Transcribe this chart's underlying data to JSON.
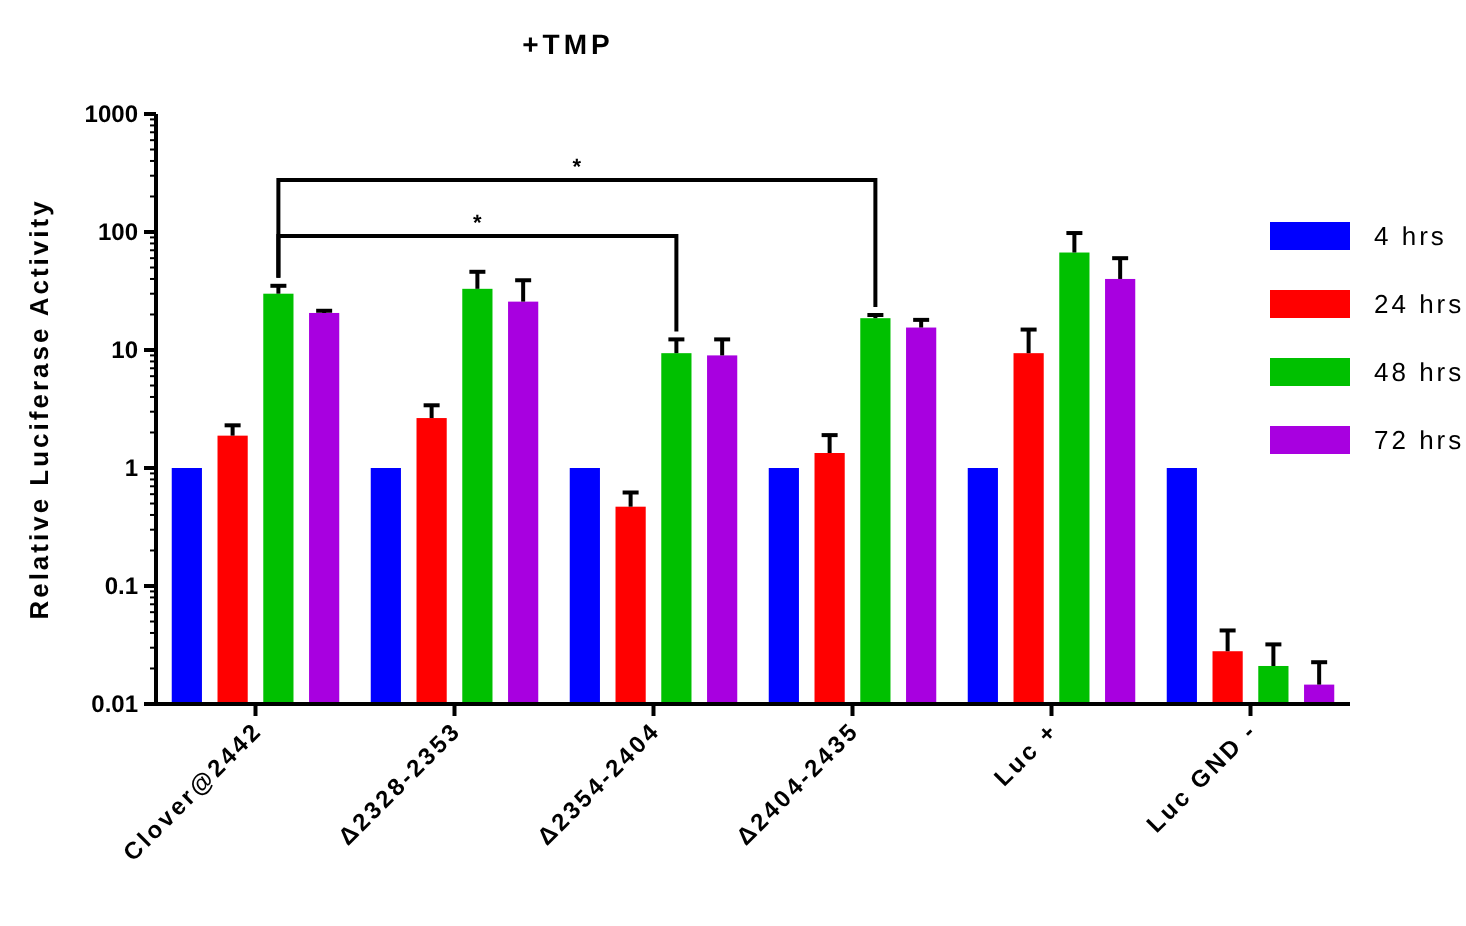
{
  "chart_data": {
    "type": "bar",
    "title": "+TMP",
    "ylabel": "Relative Luciferase Activity",
    "categories": [
      "Clover@2442",
      "Δ2328-2353",
      "Δ2354-2404",
      "Δ2404-2435",
      "Luc +",
      "Luc GND -"
    ],
    "series": [
      {
        "name": "4 hrs",
        "color": "#0000ff",
        "values": [
          1,
          1,
          1,
          1,
          1,
          1
        ],
        "errors": [
          null,
          null,
          null,
          null,
          null,
          null
        ]
      },
      {
        "name": "24 hrs",
        "color": "#ff0000",
        "values": [
          1.88,
          2.65,
          0.47,
          1.34,
          9.4,
          0.028
        ],
        "errors": [
          [
            1.88,
            2.3
          ],
          [
            2.65,
            3.4
          ],
          [
            0.47,
            0.62
          ],
          [
            1.34,
            1.9
          ],
          [
            9.4,
            14.9
          ],
          [
            0.028,
            0.042
          ]
        ]
      },
      {
        "name": "48 hrs",
        "color": "#00c000",
        "values": [
          30,
          33,
          9.4,
          18.6,
          67,
          0.021
        ],
        "errors": [
          [
            30,
            35
          ],
          [
            33,
            46
          ],
          [
            9.4,
            12.3
          ],
          [
            18.6,
            19.8
          ],
          [
            67,
            98
          ],
          [
            0.021,
            0.032
          ]
        ]
      },
      {
        "name": "72 hrs",
        "color": "#a800e0",
        "values": [
          20.6,
          25.7,
          9,
          15.5,
          40,
          0.0146
        ],
        "errors": [
          [
            20.6,
            21.5
          ],
          [
            25.7,
            39
          ],
          [
            9,
            12.3
          ],
          [
            15.5,
            18
          ],
          [
            40,
            60
          ],
          [
            0.0146,
            0.0226
          ]
        ]
      }
    ],
    "log": true,
    "ylim": [
      0.01,
      1000
    ],
    "yticks": [
      0.01,
      {
        "value": 0.02,
        "label": null
      },
      {
        "value": 0.03,
        "label": null
      },
      {
        "value": 0.04,
        "label": null
      },
      {
        "value": 0.05,
        "label": null
      },
      {
        "value": 0.06,
        "label": null
      },
      {
        "value": 0.07,
        "label": null
      },
      {
        "value": 0.08,
        "label": null
      },
      {
        "value": 0.09,
        "label": null
      },
      0.1,
      {
        "value": 0.2,
        "label": null
      },
      {
        "value": 0.3,
        "label": null
      },
      {
        "value": 0.4,
        "label": null
      },
      {
        "value": 0.5,
        "label": null
      },
      {
        "value": 0.6,
        "label": null
      },
      {
        "value": 0.7,
        "label": null
      },
      {
        "value": 0.8,
        "label": null
      },
      {
        "value": 0.9,
        "label": null
      },
      1,
      {
        "value": 2,
        "label": null
      },
      {
        "value": 3,
        "label": null
      },
      {
        "value": 4,
        "label": null
      },
      {
        "value": 5,
        "label": null
      },
      {
        "value": 6,
        "label": null
      },
      {
        "value": 7,
        "label": null
      },
      {
        "value": 8,
        "label": null
      },
      {
        "value": 9,
        "label": null
      },
      10,
      {
        "value": 20,
        "label": null
      },
      {
        "value": 30,
        "label": null
      },
      {
        "value": 40,
        "label": null
      },
      {
        "value": 50,
        "label": null
      },
      {
        "value": 60,
        "label": null
      },
      {
        "value": 70,
        "label": null
      },
      {
        "value": 80,
        "label": null
      },
      {
        "value": 90,
        "label": null
      },
      100,
      {
        "value": 200,
        "label": null
      },
      {
        "value": 300,
        "label": null
      },
      {
        "value": 400,
        "label": null
      },
      {
        "value": 500,
        "label": null
      },
      {
        "value": 600,
        "label": null
      },
      {
        "value": 700,
        "label": null
      },
      {
        "value": 800,
        "label": null
      },
      {
        "value": 900,
        "label": null
      },
      1000
    ],
    "grid": false,
    "legend": "right",
    "annotations": [
      "*",
      "*"
    ]
  }
}
